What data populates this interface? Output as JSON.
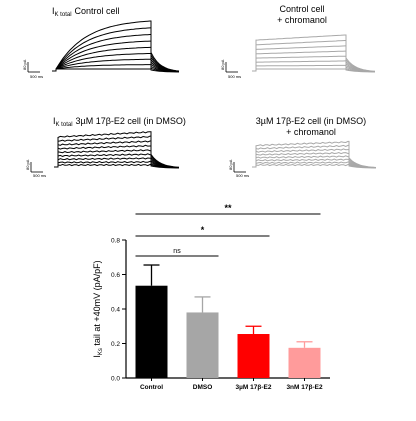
{
  "colors": {
    "black": "#000000",
    "grey": "#a6a6a6",
    "trace_grey": "#a8a8a8",
    "red": "#ff0000",
    "pink": "#ff9b9b",
    "axis": "#000000"
  },
  "traces": {
    "panel_a": {
      "title_main": "I",
      "title_sub": "K total",
      "title_rest": "Control cell",
      "scale_y": "80 pA",
      "scale_x": "500 ms"
    },
    "panel_b": {
      "title_line1": "Control cell",
      "title_line2": "+ chromanol",
      "scale_y": "80 pA",
      "scale_x": "500 ms"
    },
    "panel_c": {
      "title_main": "I",
      "title_sub": "K total",
      "title_rest": "3µM 17β-E2 cell (in DMSO)",
      "scale_y": "80 pA",
      "scale_x": "500 ms"
    },
    "panel_d": {
      "title_line1": "3µM 17β-E2 cell (in DMSO)",
      "title_line2": "+ chromanol",
      "scale_y": "80 pA",
      "scale_x": "500 ms"
    }
  },
  "chart_data": {
    "type": "bar",
    "categories": [
      "Control",
      "DMSO",
      "3µM 17β-E2",
      "3nM 17β-E2"
    ],
    "values": [
      0.535,
      0.38,
      0.255,
      0.175
    ],
    "errors": [
      0.12,
      0.09,
      0.045,
      0.035
    ],
    "bar_colors": [
      "#000000",
      "#a6a6a6",
      "#ff0000",
      "#ff9b9b"
    ],
    "ylabel_main": "I",
    "ylabel_sub": "Ks",
    "ylabel_rest": " tail at +40mV (pA/pF)",
    "ylim": [
      0,
      0.8
    ],
    "yticks": [
      "0.0",
      "0.2",
      "0.4",
      "0.6",
      "0.8"
    ],
    "yticks_values": [
      0,
      0.2,
      0.4,
      0.6,
      0.8
    ],
    "significance": [
      {
        "label": "**",
        "from": 0,
        "to": 3
      },
      {
        "label": "*",
        "from": 0,
        "to": 2
      },
      {
        "label": "ns",
        "from": 0,
        "to": 1
      }
    ],
    "grid": false,
    "legend": "none"
  }
}
